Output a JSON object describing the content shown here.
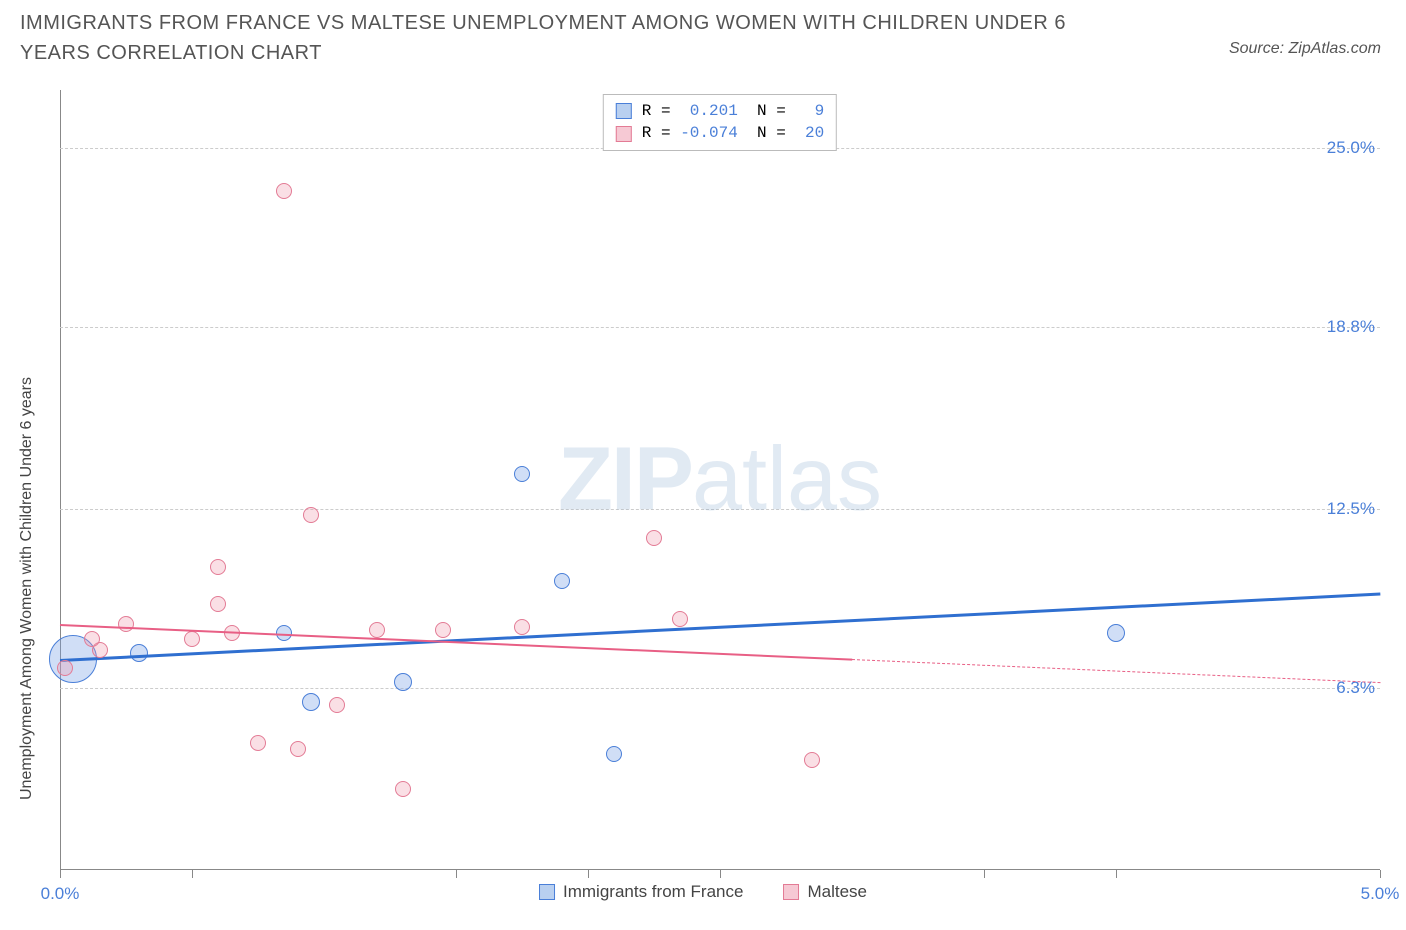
{
  "title": "IMMIGRANTS FROM FRANCE VS MALTESE UNEMPLOYMENT AMONG WOMEN WITH CHILDREN UNDER 6 YEARS CORRELATION CHART",
  "source_prefix": "Source: ",
  "source_name": "ZipAtlas.com",
  "watermark_zip": "ZIP",
  "watermark_atlas": "atlas",
  "y_axis_label": "Unemployment Among Women with Children Under 6 years",
  "chart": {
    "type": "scatter",
    "xlim": [
      0.0,
      5.0
    ],
    "ylim": [
      0.0,
      27.0
    ],
    "x_ticks_at": [
      0.0,
      0.5,
      1.5,
      2.0,
      2.5,
      3.5,
      4.0,
      5.0
    ],
    "x_tick_labels": [
      {
        "x": 0.0,
        "label": "0.0%"
      },
      {
        "x": 5.0,
        "label": "5.0%"
      }
    ],
    "y_grid": [
      {
        "y": 6.3,
        "label": "6.3%"
      },
      {
        "y": 12.5,
        "label": "12.5%"
      },
      {
        "y": 18.8,
        "label": "18.8%"
      },
      {
        "y": 25.0,
        "label": "25.0%"
      }
    ],
    "grid_color": "#cccccc",
    "axis_color": "#888888",
    "background_color": "#ffffff",
    "label_color_blue": "#4a7fd8",
    "series": [
      {
        "id": "france",
        "name": "Immigrants from France",
        "name_key": "legend_france",
        "fill": "rgba(120,160,230,0.35)",
        "stroke": "#4a7fd8",
        "swatch_fill": "#b9d0f0",
        "swatch_border": "#4a7fd8",
        "r_stat": "0.201",
        "n_stat": "9",
        "points": [
          {
            "x": 0.05,
            "y": 7.3,
            "r": 24
          },
          {
            "x": 0.3,
            "y": 7.5,
            "r": 9
          },
          {
            "x": 0.95,
            "y": 5.8,
            "r": 9
          },
          {
            "x": 1.3,
            "y": 6.5,
            "r": 9
          },
          {
            "x": 1.75,
            "y": 13.7,
            "r": 8
          },
          {
            "x": 1.9,
            "y": 10.0,
            "r": 8
          },
          {
            "x": 2.1,
            "y": 4.0,
            "r": 8
          },
          {
            "x": 0.85,
            "y": 8.2,
            "r": 8
          },
          {
            "x": 4.0,
            "y": 8.2,
            "r": 9
          }
        ],
        "trend": {
          "x0": 0.0,
          "y0": 7.3,
          "x1": 5.0,
          "y1": 9.6,
          "color": "#2f6fd0",
          "width": 2.5
        }
      },
      {
        "id": "maltese",
        "name": "Maltese",
        "name_key": "legend_maltese",
        "fill": "rgba(240,150,170,0.30)",
        "stroke": "#e37b95",
        "swatch_fill": "#f6c9d4",
        "swatch_border": "#e37b95",
        "r_stat": "-0.074",
        "n_stat": "20",
        "points": [
          {
            "x": 0.02,
            "y": 7.0,
            "r": 8
          },
          {
            "x": 0.15,
            "y": 7.6,
            "r": 8
          },
          {
            "x": 0.12,
            "y": 8.0,
            "r": 8
          },
          {
            "x": 0.25,
            "y": 8.5,
            "r": 8
          },
          {
            "x": 0.5,
            "y": 8.0,
            "r": 8
          },
          {
            "x": 0.6,
            "y": 10.5,
            "r": 8
          },
          {
            "x": 0.65,
            "y": 8.2,
            "r": 8
          },
          {
            "x": 0.6,
            "y": 9.2,
            "r": 8
          },
          {
            "x": 0.75,
            "y": 4.4,
            "r": 8
          },
          {
            "x": 0.9,
            "y": 4.2,
            "r": 8
          },
          {
            "x": 0.85,
            "y": 23.5,
            "r": 8
          },
          {
            "x": 0.95,
            "y": 12.3,
            "r": 8
          },
          {
            "x": 1.05,
            "y": 5.7,
            "r": 8
          },
          {
            "x": 1.2,
            "y": 8.3,
            "r": 8
          },
          {
            "x": 1.3,
            "y": 2.8,
            "r": 8
          },
          {
            "x": 1.45,
            "y": 8.3,
            "r": 8
          },
          {
            "x": 1.75,
            "y": 8.4,
            "r": 8
          },
          {
            "x": 2.25,
            "y": 11.5,
            "r": 8
          },
          {
            "x": 2.35,
            "y": 8.7,
            "r": 8
          },
          {
            "x": 2.85,
            "y": 3.8,
            "r": 8
          }
        ],
        "trend_solid": {
          "x0": 0.0,
          "y0": 8.5,
          "x1": 3.0,
          "y1": 7.3,
          "color": "#e85f85",
          "width": 2
        },
        "trend_dashed": {
          "x0": 3.0,
          "y0": 7.3,
          "x1": 5.0,
          "y1": 6.5,
          "color": "#e85f85",
          "width": 1
        }
      }
    ],
    "legend_labels": {
      "r_eq": "R =",
      "n_eq": "N ="
    },
    "legend_france": "Immigrants from France",
    "legend_maltese": "Maltese"
  }
}
